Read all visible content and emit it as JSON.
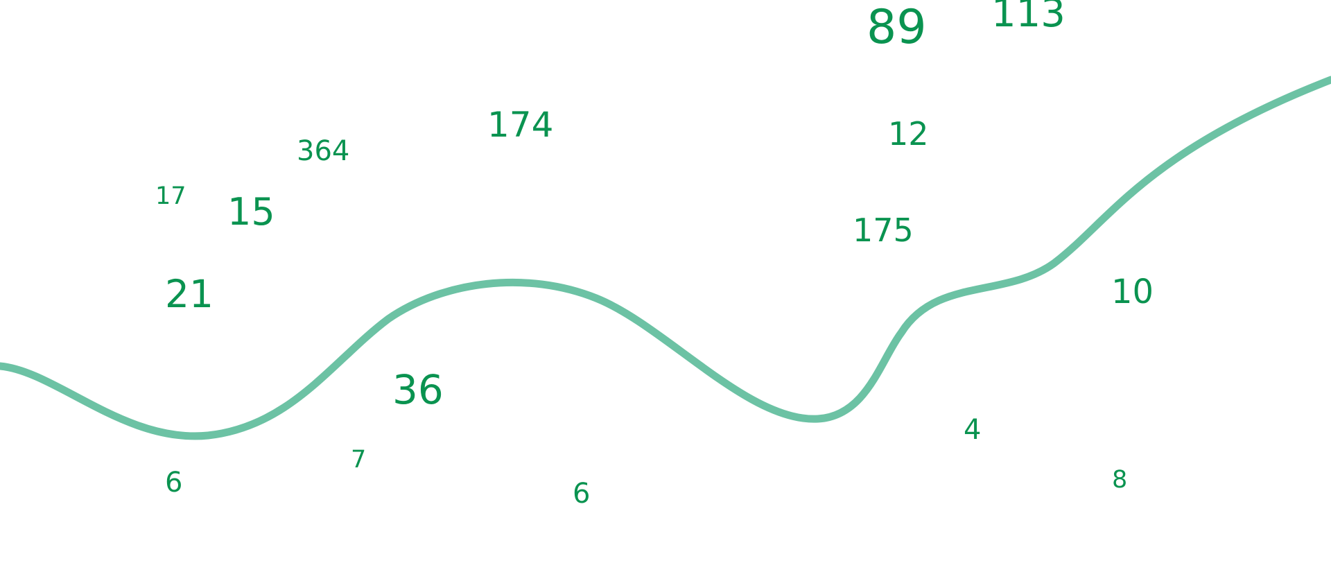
{
  "colors": {
    "number": "#0a9350",
    "curve": "#6cc2a4"
  },
  "numbers": [
    "89",
    "113",
    "174",
    "12",
    "364",
    "17",
    "15",
    "175",
    "21",
    "10",
    "36",
    "4",
    "7",
    "6",
    "6",
    "8"
  ]
}
